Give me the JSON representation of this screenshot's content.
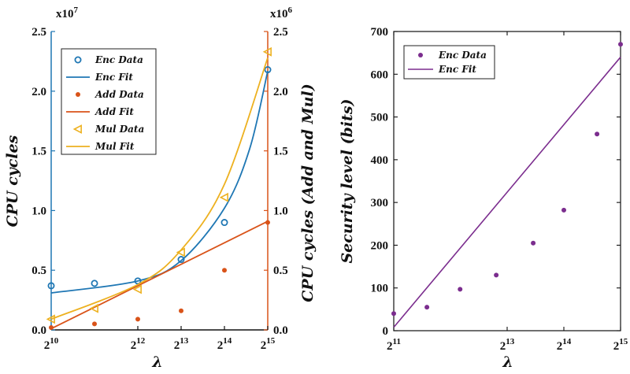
{
  "colors": {
    "enc": "#1f77b4",
    "add": "#d95319",
    "mul": "#edb120",
    "purple": "#7b2d8e",
    "axis": "#111111"
  },
  "chart_data": [
    {
      "type": "scatter",
      "xlabel": "λ",
      "ylabel": "CPU cycles",
      "ylabel_right": "CPU cycles (Add and Mul)",
      "y_multiplier_left": {
        "base": "x10",
        "exp": "7"
      },
      "y_multiplier_right": {
        "base": "x10",
        "exp": "6"
      },
      "x_ticks": [
        {
          "x": 1024,
          "base": "2",
          "exp": "10"
        },
        {
          "x": 4096,
          "base": "2",
          "exp": "12"
        },
        {
          "x": 8192,
          "base": "2",
          "exp": "13"
        },
        {
          "x": 16384,
          "base": "2",
          "exp": "14"
        },
        {
          "x": 32768,
          "base": "2",
          "exp": "15"
        }
      ],
      "xlim": [
        1024,
        32768
      ],
      "ylim_left": [
        0,
        2.5
      ],
      "ylim_right": [
        0,
        2.5
      ],
      "y_ticks_left": [
        "0.0",
        "0.5",
        "1.0",
        "1.5",
        "2.0",
        "2.5"
      ],
      "y_ticks_right": [
        "0.0",
        "0.5",
        "1.0",
        "1.5",
        "2.0",
        "2.5"
      ],
      "legend_position": "top-left",
      "series": [
        {
          "name": "Enc Data",
          "kind": "circle",
          "axis": "left",
          "color": "enc",
          "x": [
            1024,
            2048,
            4096,
            8192,
            16384,
            32768
          ],
          "y": [
            0.37,
            0.39,
            0.41,
            0.59,
            0.9,
            2.18
          ]
        },
        {
          "name": "Enc Fit",
          "kind": "line",
          "axis": "left",
          "color": "enc",
          "x": [
            1024,
            4096,
            8192,
            16384,
            24576,
            32768
          ],
          "y": [
            0.31,
            0.41,
            0.58,
            1.02,
            1.52,
            2.17
          ]
        },
        {
          "name": "Add Data",
          "kind": "dot",
          "axis": "right",
          "color": "add",
          "x": [
            1024,
            2048,
            4096,
            8192,
            16384,
            32768
          ],
          "y": [
            0.02,
            0.05,
            0.09,
            0.16,
            0.5,
            0.9
          ]
        },
        {
          "name": "Add Fit",
          "kind": "line",
          "axis": "right",
          "color": "add",
          "x": [
            1024,
            32768
          ],
          "y": [
            0.01,
            0.91
          ]
        },
        {
          "name": "Mul Data",
          "kind": "triangle",
          "axis": "right",
          "color": "mul",
          "x": [
            1024,
            2048,
            4096,
            8192,
            16384,
            32768
          ],
          "y": [
            0.09,
            0.18,
            0.34,
            0.65,
            1.11,
            2.33
          ]
        },
        {
          "name": "Mul Fit",
          "kind": "line",
          "axis": "right",
          "color": "mul",
          "x": [
            1024,
            4096,
            8192,
            16384,
            32768
          ],
          "y": [
            0.09,
            0.38,
            0.67,
            1.22,
            2.28
          ]
        }
      ]
    },
    {
      "type": "scatter",
      "xlabel": "λ",
      "ylabel": "Security level (bits)",
      "x_ticks": [
        {
          "x": 2048,
          "base": "2",
          "exp": "11"
        },
        {
          "x": 8192,
          "base": "2",
          "exp": "13"
        },
        {
          "x": 16384,
          "base": "2",
          "exp": "14"
        },
        {
          "x": 32768,
          "base": "2",
          "exp": "15"
        }
      ],
      "xlim": [
        2048,
        32768
      ],
      "ylim": [
        0,
        700
      ],
      "y_ticks": [
        "0",
        "100",
        "200",
        "300",
        "400",
        "500",
        "600",
        "700"
      ],
      "legend_position": "top-left",
      "series": [
        {
          "name": "Enc Data",
          "kind": "dot",
          "color": "purple",
          "x": [
            2048,
            3072,
            4608,
            7168,
            11264,
            16384,
            24576,
            32768
          ],
          "y": [
            40,
            55,
            97,
            130,
            205,
            282,
            460,
            670
          ]
        },
        {
          "name": "Enc Fit",
          "kind": "line",
          "color": "purple",
          "x": [
            2048,
            32768
          ],
          "y": [
            8,
            640
          ]
        }
      ]
    }
  ]
}
